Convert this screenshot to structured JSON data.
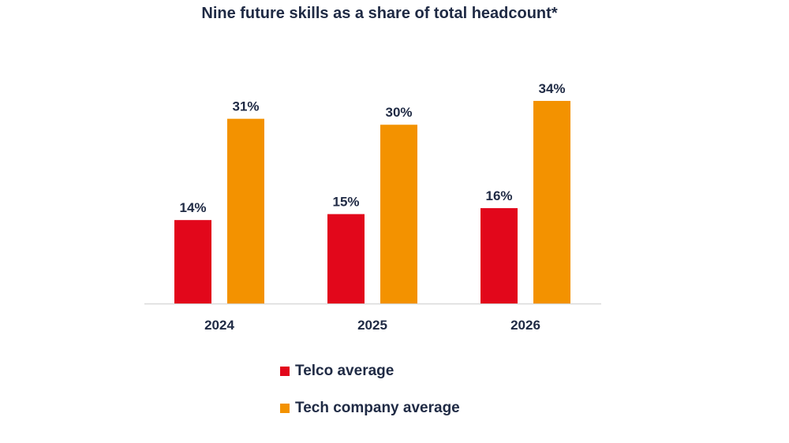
{
  "chart_data": {
    "type": "bar",
    "title": "Nine future skills as a share of total headcount*",
    "categories": [
      "2024",
      "2025",
      "2026"
    ],
    "series": [
      {
        "name": "Telco average",
        "values": [
          14,
          15,
          16
        ],
        "color": "#e2071b"
      },
      {
        "name": "Tech company average",
        "values": [
          31,
          30,
          34
        ],
        "color": "#f39200"
      }
    ],
    "value_suffix": "%",
    "xlabel": "",
    "ylabel": "",
    "ylim": [
      0,
      34
    ],
    "grid": false,
    "legend_position": "bottom"
  }
}
